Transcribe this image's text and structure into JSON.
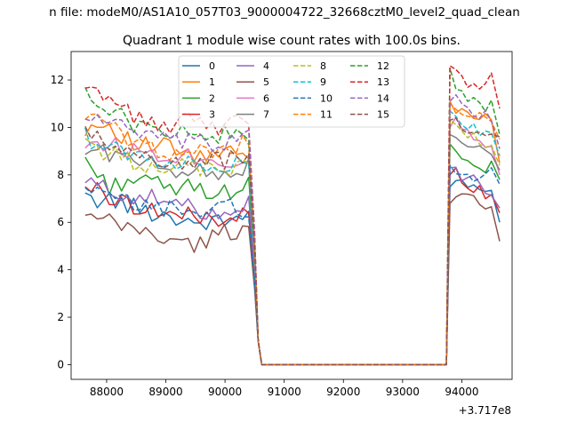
{
  "figure": {
    "suptitle": "n file: modeM0/AS1A10_057T03_9000004722_32668cztM0_level2_quad_clean",
    "offset_text": "+3.717e8"
  },
  "chart_data": {
    "type": "line",
    "title": "Quadrant 1 module wise count rates with 100.0s bins.",
    "xlabel": "",
    "ylabel": "",
    "xlim": [
      87400,
      94850
    ],
    "ylim": [
      -0.62,
      13.2
    ],
    "x_ticks": [
      88000,
      89000,
      90000,
      91000,
      92000,
      93000,
      94000
    ],
    "x_tick_labels": [
      "88000",
      "89000",
      "90000",
      "91000",
      "92000",
      "93000",
      "94000"
    ],
    "y_ticks": [
      0,
      2,
      4,
      6,
      8,
      10,
      12
    ],
    "y_tick_labels": [
      "0",
      "2",
      "4",
      "6",
      "8",
      "10",
      "12"
    ],
    "grid": false,
    "legend": {
      "location": "upper center",
      "columns": 4
    },
    "x_offset": 371700000,
    "x_segment1": [
      87637,
      88000,
      88500,
      89000,
      89500,
      90000,
      90400
    ],
    "x_drop": [
      87637,
      90440,
      90500,
      90560,
      90620
    ],
    "x_flat": [
      90620,
      93740
    ],
    "x_segment2": [
      93740,
      93800,
      93900,
      94000,
      94100,
      94200,
      94300,
      94400,
      94500,
      94640
    ],
    "series": [
      {
        "name": "0",
        "color": "#1f77b4",
        "dash": "solid",
        "a": [
          6.9,
          7.0,
          6.6,
          6.3,
          6.0,
          6.0,
          6.4
        ],
        "b": [
          2.0,
          7.5,
          7.8,
          7.7,
          7.5,
          7.4,
          7.5,
          7.3,
          7.1,
          6.0
        ]
      },
      {
        "name": "1",
        "color": "#ff7f0e",
        "dash": "solid",
        "a": [
          10.0,
          10.2,
          9.2,
          9.2,
          8.7,
          8.9,
          8.8
        ],
        "b": [
          3.0,
          11.1,
          10.8,
          11.0,
          10.6,
          10.4,
          10.2,
          10.5,
          10.4,
          8.5
        ]
      },
      {
        "name": "2",
        "color": "#2ca02c",
        "dash": "solid",
        "a": [
          8.7,
          7.5,
          7.9,
          7.4,
          7.5,
          7.2,
          7.7
        ],
        "b": [
          2.5,
          9.3,
          9.0,
          8.9,
          8.7,
          8.6,
          8.4,
          8.3,
          8.4,
          7.8
        ]
      },
      {
        "name": "3",
        "color": "#d62728",
        "dash": "solid",
        "a": [
          7.6,
          7.1,
          6.7,
          6.4,
          6.2,
          6.2,
          6.3
        ],
        "b": [
          2.0,
          8.0,
          8.3,
          7.8,
          7.6,
          7.4,
          7.3,
          7.1,
          7.0,
          6.4
        ]
      },
      {
        "name": "4",
        "color": "#9467bd",
        "dash": "solid",
        "a": [
          7.7,
          7.4,
          7.1,
          6.9,
          6.5,
          6.5,
          6.9
        ],
        "b": [
          2.2,
          8.3,
          8.1,
          7.8,
          7.7,
          7.8,
          7.5,
          7.4,
          7.3,
          6.6
        ]
      },
      {
        "name": "5",
        "color": "#8c564b",
        "dash": "solid",
        "a": [
          6.2,
          6.0,
          5.7,
          5.3,
          5.0,
          5.6,
          5.7
        ],
        "b": [
          1.8,
          6.8,
          7.2,
          7.3,
          7.1,
          7.0,
          6.9,
          6.8,
          6.7,
          5.2
        ]
      },
      {
        "name": "6",
        "color": "#e377c2",
        "dash": "solid",
        "a": [
          9.4,
          9.3,
          9.0,
          8.9,
          8.8,
          8.6,
          8.6
        ],
        "b": [
          2.8,
          10.0,
          10.2,
          10.0,
          9.8,
          9.7,
          9.5,
          9.4,
          9.1,
          8.0
        ]
      },
      {
        "name": "7",
        "color": "#7f7f7f",
        "dash": "solid",
        "a": [
          9.0,
          9.0,
          8.5,
          8.3,
          8.2,
          8.0,
          8.4
        ],
        "b": [
          2.6,
          9.7,
          9.5,
          9.4,
          9.3,
          9.2,
          9.0,
          9.0,
          8.9,
          8.2
        ]
      },
      {
        "name": "8",
        "color": "#bcbd22",
        "dash": "dashed",
        "a": [
          9.5,
          8.9,
          8.5,
          8.4,
          8.3,
          8.2,
          8.5
        ],
        "b": [
          2.7,
          10.3,
          10.0,
          9.8,
          9.7,
          9.6,
          9.3,
          9.2,
          9.1,
          8.4
        ]
      },
      {
        "name": "9",
        "color": "#17becf",
        "dash": "dashed",
        "a": [
          9.6,
          9.2,
          8.8,
          8.6,
          8.4,
          8.5,
          8.8
        ],
        "b": [
          2.8,
          10.7,
          10.4,
          10.2,
          10.1,
          10.0,
          9.8,
          9.7,
          9.6,
          8.8
        ]
      },
      {
        "name": "10",
        "color": "#1f77b4",
        "dash": "dashed",
        "a": [
          7.2,
          7.1,
          6.7,
          6.6,
          6.5,
          6.6,
          6.6
        ],
        "b": [
          2.1,
          8.4,
          8.1,
          8.0,
          7.9,
          7.8,
          7.7,
          7.9,
          8.1,
          7.6
        ]
      },
      {
        "name": "11",
        "color": "#ff7f0e",
        "dash": "dashed",
        "a": [
          10.6,
          10.1,
          9.3,
          9.0,
          8.9,
          9.2,
          9.3
        ],
        "b": [
          3.0,
          11.0,
          10.8,
          10.5,
          10.7,
          10.3,
          10.5,
          10.3,
          10.1,
          9.5
        ]
      },
      {
        "name": "12",
        "color": "#2ca02c",
        "dash": "dashed",
        "a": [
          11.3,
          11.0,
          10.0,
          9.9,
          9.7,
          9.7,
          9.6
        ],
        "b": [
          3.2,
          12.5,
          11.8,
          11.5,
          11.2,
          11.3,
          11.0,
          10.9,
          11.0,
          9.7
        ]
      },
      {
        "name": "13",
        "color": "#d62728",
        "dash": "dashed",
        "a": [
          11.4,
          11.5,
          10.3,
          10.1,
          10.3,
          10.0,
          10.5
        ],
        "b": [
          3.3,
          12.6,
          12.5,
          12.0,
          11.8,
          11.9,
          11.4,
          11.7,
          12.3,
          10.8
        ]
      },
      {
        "name": "14",
        "color": "#9467bd",
        "dash": "dashed",
        "a": [
          10.4,
          10.4,
          9.7,
          9.4,
          9.3,
          9.3,
          9.8
        ],
        "b": [
          3.0,
          11.1,
          11.3,
          10.9,
          10.8,
          10.5,
          10.4,
          10.5,
          10.3,
          9.1
        ]
      },
      {
        "name": "15",
        "color": "#8c564b",
        "dash": "dashed",
        "a": [
          9.7,
          9.3,
          8.9,
          8.5,
          8.6,
          8.6,
          8.9
        ],
        "b": [
          2.8,
          10.3,
          10.2,
          10.1,
          10.0,
          9.9,
          9.8,
          9.9,
          9.7,
          9.6
        ]
      }
    ]
  }
}
